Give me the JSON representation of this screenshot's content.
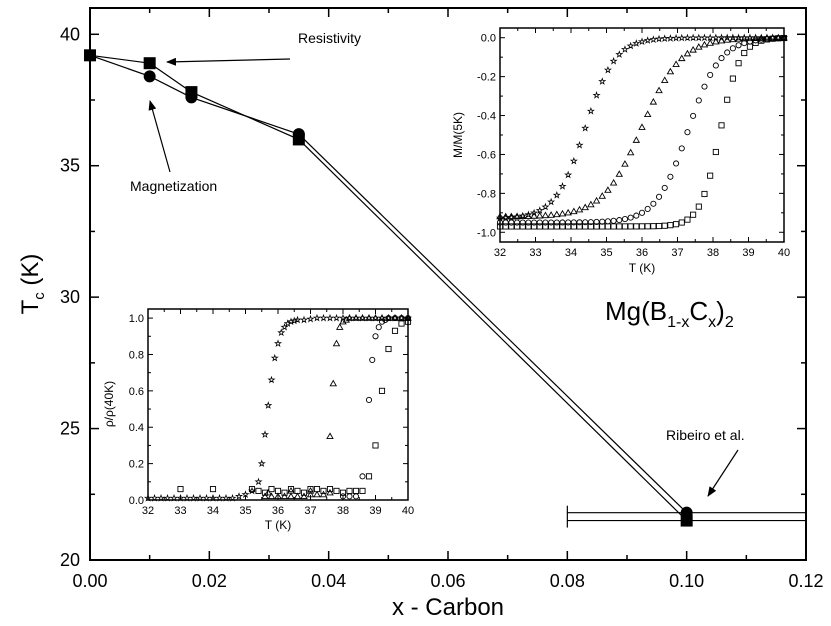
{
  "chart_data": [
    {
      "id": "main",
      "type": "line",
      "xlabel": "x - Carbon",
      "ylabel_main": "T",
      "ylabel_sub": "c",
      "ylabel_unit": " (K)",
      "xlim": [
        0.0,
        0.12
      ],
      "ylim": [
        20,
        41
      ],
      "xticks": [
        0.0,
        0.02,
        0.04,
        0.06,
        0.08,
        0.1,
        0.12
      ],
      "xtick_labels": [
        "0.00",
        "0.02",
        "0.04",
        "0.06",
        "0.08",
        "0.10",
        "0.12"
      ],
      "yticks": [
        20,
        25,
        30,
        35,
        40
      ],
      "ytick_labels": [
        "20",
        "25",
        "30",
        "35",
        "40"
      ],
      "series": [
        {
          "name": "Resistivity",
          "marker": "square",
          "x": [
            0.0,
            0.01,
            0.017,
            0.035,
            0.1
          ],
          "y": [
            39.2,
            38.9,
            37.8,
            36.0,
            21.5
          ]
        },
        {
          "name": "Magnetization",
          "marker": "circle",
          "x": [
            0.0,
            0.01,
            0.017,
            0.035,
            0.1
          ],
          "y": [
            39.2,
            38.4,
            37.6,
            36.2,
            21.8
          ]
        }
      ],
      "error_bar": {
        "y": [
          21.5,
          21.8
        ],
        "xerr": [
          0.08,
          0.12
        ]
      },
      "annotations": {
        "resistivity": "Resistivity",
        "magnetization": "Magnetization",
        "ribeiro": "Ribeiro et al.",
        "formula_parts": [
          "Mg(B",
          "1-x",
          "C",
          "x",
          ")",
          "2"
        ]
      }
    },
    {
      "id": "inset_magnetization",
      "type": "scatter",
      "xlabel": "T (K)",
      "ylabel": "M/M(5K)",
      "xlim": [
        32,
        40
      ],
      "ylim": [
        -1.05,
        0.05
      ],
      "xticks": [
        32,
        33,
        34,
        35,
        36,
        37,
        38,
        39,
        40
      ],
      "yticks": [
        0.0,
        -0.2,
        -0.4,
        -0.6,
        -0.8,
        -1.0
      ],
      "ytick_labels": [
        "0.0",
        "-0.2",
        "-0.4",
        "-0.6",
        "-0.8",
        "-1.0"
      ],
      "series": [
        {
          "marker": "star",
          "curve": {
            "low": -0.93,
            "t0": 34.4,
            "w": 0.42
          }
        },
        {
          "marker": "triangle",
          "curve": {
            "low": -0.92,
            "t0": 36.0,
            "w": 0.55
          }
        },
        {
          "marker": "circle",
          "curve": {
            "low": -0.95,
            "t0": 37.3,
            "w": 0.45
          }
        },
        {
          "marker": "square",
          "curve": {
            "low": -0.97,
            "t0": 38.2,
            "w": 0.28
          }
        }
      ]
    },
    {
      "id": "inset_resistivity",
      "type": "scatter",
      "xlabel": "T (K)",
      "ylabel": "ρ/ρ(40K)",
      "xlim": [
        32,
        40
      ],
      "ylim": [
        0.0,
        1.05
      ],
      "xticks": [
        32,
        33,
        34,
        35,
        36,
        37,
        38,
        39,
        40
      ],
      "yticks": [
        0.0,
        0.2,
        0.4,
        0.6,
        0.8,
        1.0
      ],
      "ytick_labels": [
        "0.0",
        "0.2",
        "0.4",
        "0.6",
        "0.8",
        "1.0"
      ],
      "series": [
        {
          "marker": "star",
          "x": [
            32.0,
            32.2,
            32.4,
            32.6,
            32.8,
            33.0,
            33.2,
            33.4,
            33.6,
            33.8,
            34.0,
            34.2,
            34.4,
            34.6,
            34.8,
            35.0,
            35.2,
            35.4,
            35.5,
            35.6,
            35.7,
            35.8,
            35.9,
            36.0,
            36.1,
            36.2,
            36.3,
            36.4,
            36.5,
            36.6,
            36.8,
            37.0,
            37.2,
            37.4,
            37.6,
            37.8,
            38.0,
            38.2,
            38.4,
            38.6,
            38.8,
            39.0,
            39.2,
            39.4,
            39.6,
            39.8,
            40.0
          ],
          "y": [
            0.01,
            0.01,
            0.01,
            0.01,
            0.01,
            0.01,
            0.01,
            0.01,
            0.01,
            0.01,
            0.01,
            0.01,
            0.01,
            0.01,
            0.02,
            0.03,
            0.05,
            0.1,
            0.2,
            0.36,
            0.52,
            0.66,
            0.78,
            0.86,
            0.92,
            0.95,
            0.97,
            0.98,
            0.985,
            0.99,
            0.99,
            0.995,
            1.0,
            1.0,
            1.0,
            1.0,
            1.0,
            1.0,
            1.0,
            1.0,
            1.0,
            1.0,
            1.0,
            1.0,
            1.0,
            1.0,
            1.0
          ]
        },
        {
          "marker": "triangle",
          "x": [
            35.6,
            35.8,
            36.0,
            36.2,
            36.4,
            36.6,
            36.8,
            37.0,
            37.2,
            37.4,
            37.6,
            37.7,
            37.8,
            37.9,
            38.0,
            38.1,
            38.2,
            38.4,
            38.6,
            38.8,
            39.0,
            39.2,
            39.4,
            39.6,
            39.8,
            40.0
          ],
          "y": [
            0.02,
            0.02,
            0.02,
            0.02,
            0.02,
            0.02,
            0.02,
            0.03,
            0.03,
            0.03,
            0.35,
            0.64,
            0.86,
            0.95,
            0.98,
            0.99,
            1.0,
            1.0,
            1.0,
            1.0,
            1.0,
            1.0,
            1.0,
            1.0,
            1.0,
            1.0
          ],
          "extra_points": [
            [
              35.7,
              0.04
            ],
            [
              36.4,
              0.05
            ],
            [
              37.0,
              0.05
            ],
            [
              37.6,
              0.04
            ]
          ]
        },
        {
          "marker": "circle",
          "x": [
            38.0,
            38.2,
            38.4,
            38.6,
            38.8,
            38.9,
            39.0,
            39.1,
            39.2,
            39.3,
            39.4,
            39.6,
            39.8,
            40.0
          ],
          "y": [
            0.02,
            0.02,
            0.02,
            0.13,
            0.55,
            0.77,
            0.9,
            0.95,
            0.98,
            0.99,
            1.0,
            1.0,
            1.0,
            1.0
          ]
        },
        {
          "marker": "square",
          "x": [
            33.0,
            34.0,
            35.2,
            35.4,
            35.6,
            35.8,
            36.0,
            36.2,
            36.4,
            36.6,
            36.8,
            37.0,
            37.2,
            37.4,
            37.6,
            37.8,
            38.0,
            38.2,
            38.4,
            38.6,
            38.8,
            39.0,
            39.2,
            39.4,
            39.6,
            39.8,
            40.0
          ],
          "y": [
            0.06,
            0.06,
            0.06,
            0.05,
            0.04,
            0.06,
            0.05,
            0.04,
            0.06,
            0.05,
            0.04,
            0.06,
            0.06,
            0.05,
            0.06,
            0.05,
            0.04,
            0.05,
            0.05,
            0.05,
            0.13,
            0.3,
            0.6,
            0.83,
            0.93,
            0.97,
            0.98
          ]
        }
      ]
    }
  ]
}
